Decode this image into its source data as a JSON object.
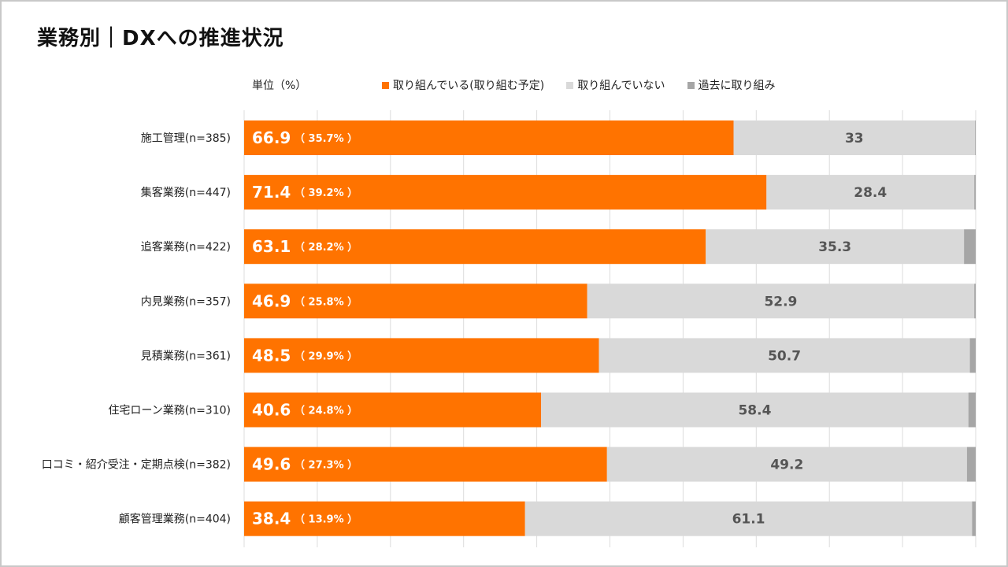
{
  "title": "業務別｜DXへの推進状況",
  "chart_data": {
    "type": "bar",
    "orientation": "horizontal",
    "stacked": true,
    "unit_label": "単位（%）",
    "xlim": [
      0,
      100
    ],
    "categories": [
      "施工管理(n=385)",
      "集客業務(n=447)",
      "追客業務(n=422)",
      "内見業務(n=357)",
      "見積業務(n=361)",
      "住宅ローン業務(n=310)",
      "口コミ・紹介受注・定期点検(n=382)",
      "顧客管理業務(n=404)"
    ],
    "series": [
      {
        "name": "取り組んでいる(取り組む予定)",
        "color": "#FF7300",
        "values": [
          66.9,
          71.4,
          63.1,
          46.9,
          48.5,
          40.6,
          49.6,
          38.4
        ],
        "sub_labels": [
          "（ 35.7% ）",
          "（ 39.2% ）",
          "（ 28.2% ）",
          "（ 25.8% ）",
          "（ 29.9% ）",
          "（ 24.8% ）",
          "（ 27.3% ）",
          "（ 13.9% ）"
        ]
      },
      {
        "name": "取り組んでいない",
        "color": "#D9D9D9",
        "values": [
          33,
          28.4,
          35.3,
          52.9,
          50.7,
          58.4,
          49.2,
          61.1
        ]
      },
      {
        "name": "過去に取り組み",
        "color": "#A6A6A6",
        "values": [
          0.1,
          0.2,
          1.6,
          0.2,
          0.8,
          1.0,
          1.2,
          0.5
        ]
      }
    ]
  }
}
